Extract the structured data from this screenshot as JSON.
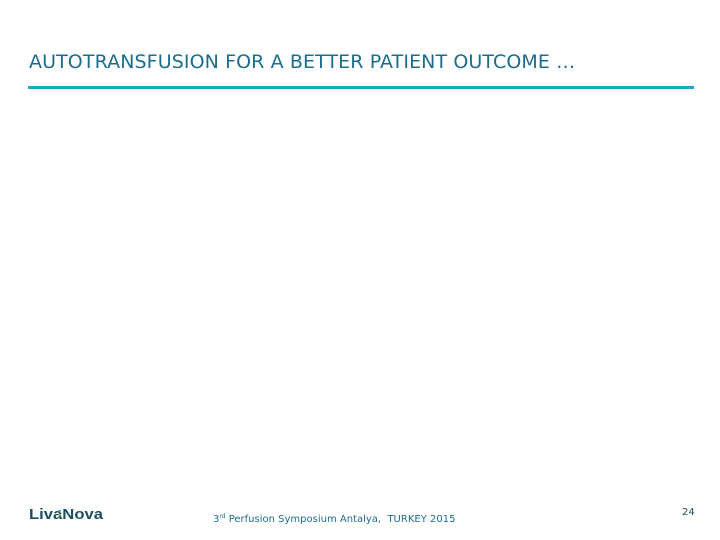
{
  "slide": {
    "title": "AUTOTRANSFUSION FOR A BETTER PATIENT OUTCOME …",
    "accent_color": "#19a9c6",
    "text_color": "#1c6d8c"
  },
  "footer": {
    "logo_text": "LivaNova",
    "logo_icon": "livanova-logo",
    "event_ordinal": "3",
    "event_ordinal_suffix": "rd",
    "event_text": " Perfusion Symposium Antalya,  TURKEY 2015",
    "page_number": "24"
  }
}
